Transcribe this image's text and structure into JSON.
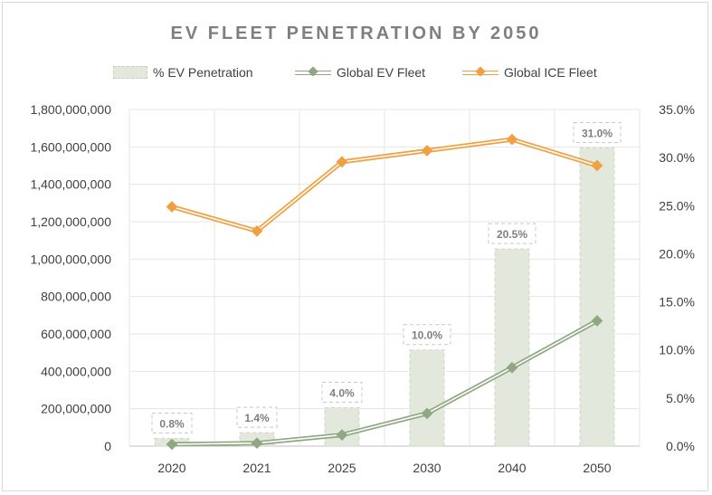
{
  "chart_data": {
    "type": "bar",
    "title": "EV FLEET PENETRATION BY 2050",
    "categories": [
      "2020",
      "2021",
      "2025",
      "2030",
      "2040",
      "2050"
    ],
    "series": [
      {
        "name": "% EV Penetration",
        "type": "bar",
        "axis": "right",
        "values": [
          0.8,
          1.4,
          4.0,
          10.0,
          20.5,
          31.0
        ],
        "labels": [
          "0.8%",
          "1.4%",
          "4.0%",
          "10.0%",
          "20.5%",
          "31.0%"
        ],
        "color": "#e2e8dc"
      },
      {
        "name": "Global EV Fleet",
        "type": "line",
        "axis": "left",
        "values": [
          10000000,
          16000000,
          60000000,
          175000000,
          420000000,
          670000000
        ],
        "color": "#8fa883"
      },
      {
        "name": "Global ICE Fleet",
        "type": "line",
        "axis": "left",
        "values": [
          1280000000,
          1150000000,
          1520000000,
          1580000000,
          1640000000,
          1500000000
        ],
        "color": "#f0a040"
      }
    ],
    "y_left": {
      "min": 0,
      "max": 1800000000,
      "ticks": [
        "0",
        "200,000,000",
        "400,000,000",
        "600,000,000",
        "800,000,000",
        "1,000,000,000",
        "1,200,000,000",
        "1,400,000,000",
        "1,600,000,000",
        "1,800,000,000"
      ]
    },
    "y_right": {
      "min": 0,
      "max": 35,
      "ticks": [
        "0.0%",
        "5.0%",
        "10.0%",
        "15.0%",
        "20.0%",
        "25.0%",
        "30.0%",
        "35.0%"
      ]
    },
    "grid": true,
    "legend_position": "top"
  }
}
